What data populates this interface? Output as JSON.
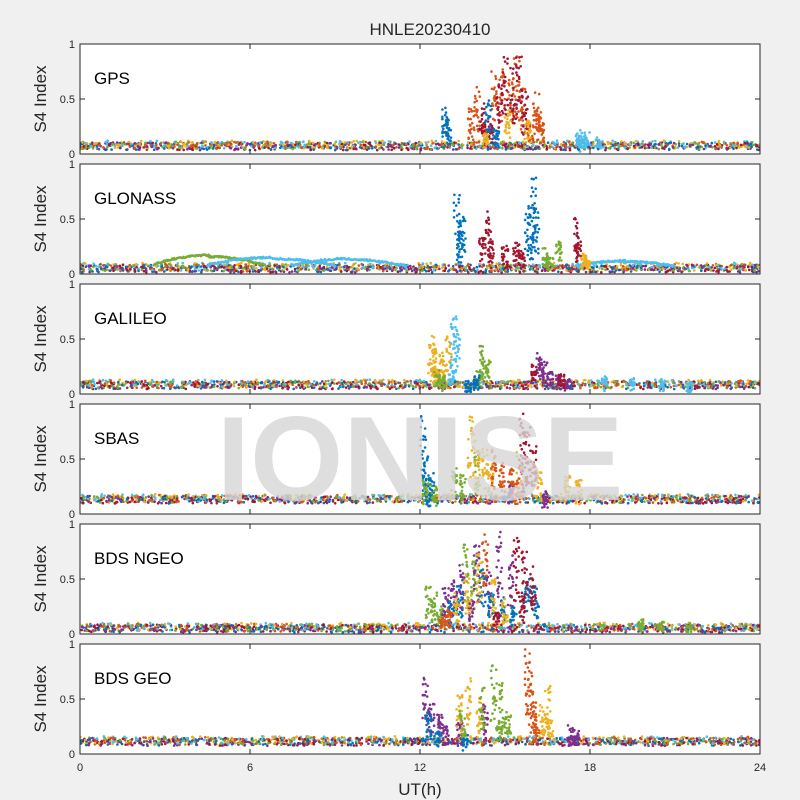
{
  "chart_data": {
    "type": "scatter",
    "title": "HNLE20230410",
    "xlabel": "UT(h)",
    "ylabel": "S4 Index",
    "xlim": [
      0,
      24
    ],
    "ylim": [
      0,
      1
    ],
    "xticks": [
      0,
      6,
      12,
      18,
      24
    ],
    "xtick_labels": [
      "0",
      "6",
      "12",
      "18",
      "24"
    ],
    "yticks": [
      0,
      0.5,
      1
    ],
    "ytick_labels": [
      "0",
      "0.5",
      "1"
    ],
    "grid": false,
    "watermark": "IONISE",
    "series_colors": [
      "#0072BD",
      "#D95319",
      "#EDB120",
      "#7E2F8E",
      "#77AC30",
      "#4DBEEE",
      "#A2142F"
    ],
    "panels": [
      {
        "label": "GPS",
        "baseline": 0.07,
        "bursts": [
          {
            "color": 1,
            "points": [
              [
                13.8,
                0.4
              ],
              [
                14.0,
                0.6
              ],
              [
                14.3,
                0.25
              ],
              [
                14.6,
                0.75
              ],
              [
                14.9,
                0.85
              ],
              [
                15.2,
                0.7
              ],
              [
                15.4,
                0.9
              ],
              [
                15.6,
                0.6
              ],
              [
                15.9,
                0.3
              ]
            ]
          },
          {
            "color": 6,
            "points": [
              [
                14.2,
                0.5
              ],
              [
                14.5,
                0.3
              ],
              [
                14.8,
                0.65
              ],
              [
                15.0,
                0.92
              ],
              [
                15.3,
                0.8
              ],
              [
                15.5,
                0.92
              ],
              [
                15.7,
                0.55
              ]
            ]
          },
          {
            "color": 0,
            "points": [
              [
                12.9,
                0.45
              ],
              [
                13.0,
                0.3
              ],
              [
                14.4,
                0.5
              ],
              [
                14.7,
                0.2
              ]
            ]
          },
          {
            "color": 2,
            "points": [
              [
                14.3,
                0.2
              ],
              [
                15.1,
                0.4
              ],
              [
                15.8,
                0.3
              ]
            ]
          },
          {
            "color": 1,
            "points": [
              [
                16.1,
                0.55
              ],
              [
                16.2,
                0.4
              ],
              [
                16.3,
                0.3
              ]
            ]
          },
          {
            "color": 5,
            "points": [
              [
                17.6,
                0.22
              ],
              [
                17.9,
                0.18
              ],
              [
                18.3,
                0.15
              ],
              [
                17.7,
                0.12
              ]
            ]
          }
        ]
      },
      {
        "label": "GLONASS",
        "baseline": 0.05,
        "arcs": [
          {
            "color": 4,
            "x": [
              2.6,
              6.5
            ],
            "peak": 0.17
          },
          {
            "color": 5,
            "x": [
              4.5,
              9.0
            ],
            "peak": 0.15
          },
          {
            "color": 5,
            "x": [
              7.5,
              11.5
            ],
            "peak": 0.14
          },
          {
            "color": 5,
            "x": [
              17.5,
              21.0
            ],
            "peak": 0.12
          }
        ],
        "bursts": [
          {
            "color": 0,
            "points": [
              [
                13.3,
                0.7
              ],
              [
                13.5,
                0.5
              ],
              [
                13.4,
                0.35
              ]
            ]
          },
          {
            "color": 6,
            "points": [
              [
                14.2,
                0.35
              ],
              [
                14.4,
                0.55
              ],
              [
                14.5,
                0.3
              ],
              [
                15.0,
                0.25
              ]
            ]
          },
          {
            "color": 0,
            "points": [
              [
                15.8,
                0.6
              ],
              [
                16.0,
                0.9
              ],
              [
                16.1,
                0.55
              ],
              [
                15.9,
                0.35
              ]
            ]
          },
          {
            "color": 6,
            "points": [
              [
                15.4,
                0.3
              ],
              [
                15.6,
                0.2
              ],
              [
                17.5,
                0.5
              ],
              [
                17.6,
                0.3
              ]
            ]
          },
          {
            "color": 4,
            "points": [
              [
                16.4,
                0.22
              ],
              [
                16.9,
                0.3
              ],
              [
                16.6,
                0.15
              ]
            ]
          },
          {
            "color": 2,
            "points": [
              [
                17.8,
                0.18
              ],
              [
                17.9,
                0.12
              ]
            ]
          }
        ]
      },
      {
        "label": "GALILEO",
        "baseline": 0.08,
        "bursts": [
          {
            "color": 2,
            "points": [
              [
                12.4,
                0.6
              ],
              [
                12.6,
                0.45
              ],
              [
                12.8,
                0.35
              ],
              [
                13.0,
                0.55
              ],
              [
                12.5,
                0.25
              ]
            ]
          },
          {
            "color": 4,
            "points": [
              [
                12.6,
                0.2
              ],
              [
                12.8,
                0.15
              ],
              [
                14.2,
                0.45
              ],
              [
                14.4,
                0.3
              ],
              [
                14.1,
                0.2
              ]
            ]
          },
          {
            "color": 5,
            "points": [
              [
                13.2,
                0.7
              ],
              [
                13.3,
                0.55
              ],
              [
                13.1,
                0.3
              ]
            ]
          },
          {
            "color": 0,
            "points": [
              [
                14.0,
                0.15
              ],
              [
                13.7,
                0.1
              ]
            ]
          },
          {
            "color": 3,
            "points": [
              [
                16.2,
                0.4
              ],
              [
                16.4,
                0.3
              ],
              [
                16.6,
                0.2
              ],
              [
                16.9,
                0.15
              ],
              [
                17.2,
                0.12
              ]
            ]
          },
          {
            "color": 6,
            "points": [
              [
                16.0,
                0.25
              ],
              [
                17.0,
                0.18
              ]
            ]
          },
          {
            "color": 5,
            "points": [
              [
                18.5,
                0.15
              ],
              [
                19.5,
                0.14
              ],
              [
                20.5,
                0.12
              ],
              [
                21.5,
                0.1
              ]
            ]
          }
        ]
      },
      {
        "label": "SBAS",
        "baseline": 0.13,
        "bursts": [
          {
            "color": 0,
            "points": [
              [
                12.1,
                0.9
              ],
              [
                12.2,
                0.5
              ],
              [
                12.4,
                0.35
              ],
              [
                12.3,
                0.2
              ]
            ]
          },
          {
            "color": 4,
            "points": [
              [
                12.2,
                0.3
              ],
              [
                12.5,
                0.25
              ],
              [
                13.2,
                0.4
              ],
              [
                14.0,
                0.55
              ],
              [
                13.5,
                0.35
              ]
            ]
          },
          {
            "color": 2,
            "points": [
              [
                13.8,
                0.9
              ],
              [
                14.0,
                0.7
              ],
              [
                14.3,
                0.6
              ],
              [
                14.5,
                0.45
              ],
              [
                15.5,
                0.55
              ],
              [
                16.2,
                0.4
              ],
              [
                17.2,
                0.35
              ],
              [
                17.6,
                0.3
              ]
            ]
          },
          {
            "color": 1,
            "points": [
              [
                14.6,
                0.6
              ],
              [
                14.9,
                0.5
              ],
              [
                15.2,
                0.4
              ],
              [
                15.4,
                0.3
              ]
            ]
          },
          {
            "color": 6,
            "points": [
              [
                15.6,
                0.95
              ],
              [
                15.8,
                0.8
              ],
              [
                16.0,
                0.6
              ],
              [
                15.7,
                0.5
              ]
            ]
          },
          {
            "color": 3,
            "points": [
              [
                15.2,
                0.25
              ],
              [
                16.4,
                0.2
              ]
            ]
          }
        ]
      },
      {
        "label": "BDS NGEO",
        "baseline": 0.05,
        "bursts": [
          {
            "color": 4,
            "points": [
              [
                12.3,
                0.45
              ],
              [
                12.5,
                0.35
              ],
              [
                12.7,
                0.25
              ],
              [
                13.6,
                0.85
              ],
              [
                13.9,
                0.7
              ]
            ]
          },
          {
            "color": 3,
            "points": [
              [
                12.9,
                0.4
              ],
              [
                13.2,
                0.5
              ],
              [
                13.5,
                0.6
              ],
              [
                14.0,
                0.8
              ],
              [
                14.4,
                0.55
              ],
              [
                14.8,
                0.95
              ],
              [
                15.2,
                0.7
              ],
              [
                13.8,
                0.3
              ]
            ]
          },
          {
            "color": 0,
            "points": [
              [
                13.1,
                0.3
              ],
              [
                13.4,
                0.45
              ],
              [
                14.2,
                0.6
              ],
              [
                14.5,
                0.4
              ],
              [
                14.9,
                0.35
              ],
              [
                15.3,
                0.25
              ],
              [
                15.8,
                0.5
              ],
              [
                16.1,
                0.45
              ]
            ]
          },
          {
            "color": 2,
            "points": [
              [
                13.3,
                0.35
              ],
              [
                13.7,
                0.55
              ],
              [
                14.1,
                0.75
              ],
              [
                14.6,
                0.5
              ],
              [
                15.0,
                0.3
              ]
            ]
          },
          {
            "color": 6,
            "points": [
              [
                15.4,
                0.9
              ],
              [
                15.7,
                0.75
              ],
              [
                16.0,
                0.6
              ],
              [
                15.6,
                0.35
              ],
              [
                14.7,
                0.2
              ]
            ]
          },
          {
            "color": 1,
            "points": [
              [
                14.3,
                0.95
              ],
              [
                13.0,
                0.2
              ],
              [
                12.8,
                0.15
              ]
            ]
          },
          {
            "color": 4,
            "points": [
              [
                19.8,
                0.12
              ],
              [
                20.5,
                0.1
              ],
              [
                21.5,
                0.08
              ]
            ]
          }
        ]
      },
      {
        "label": "BDS GEO",
        "baseline": 0.11,
        "bursts": [
          {
            "color": 3,
            "points": [
              [
                12.2,
                0.7
              ],
              [
                12.4,
                0.5
              ],
              [
                12.7,
                0.35
              ],
              [
                12.9,
                0.25
              ],
              [
                13.4,
                0.3
              ],
              [
                14.3,
                0.45
              ]
            ]
          },
          {
            "color": 0,
            "points": [
              [
                12.3,
                0.4
              ],
              [
                12.6,
                0.2
              ],
              [
                13.6,
                0.15
              ]
            ]
          },
          {
            "color": 2,
            "points": [
              [
                13.4,
                0.55
              ],
              [
                13.7,
                0.7
              ],
              [
                14.1,
                0.5
              ],
              [
                16.3,
                0.45
              ],
              [
                16.5,
                0.6
              ],
              [
                16.6,
                0.35
              ]
            ]
          },
          {
            "color": 4,
            "points": [
              [
                13.5,
                0.4
              ],
              [
                14.2,
                0.6
              ],
              [
                14.6,
                0.85
              ],
              [
                14.9,
                0.65
              ],
              [
                15.1,
                0.4
              ],
              [
                14.8,
                0.3
              ]
            ]
          },
          {
            "color": 1,
            "points": [
              [
                15.8,
                0.95
              ],
              [
                15.9,
                0.75
              ],
              [
                16.0,
                0.55
              ],
              [
                16.1,
                0.3
              ]
            ]
          },
          {
            "color": 3,
            "points": [
              [
                17.3,
                0.25
              ],
              [
                17.5,
                0.2
              ]
            ]
          }
        ]
      }
    ]
  }
}
